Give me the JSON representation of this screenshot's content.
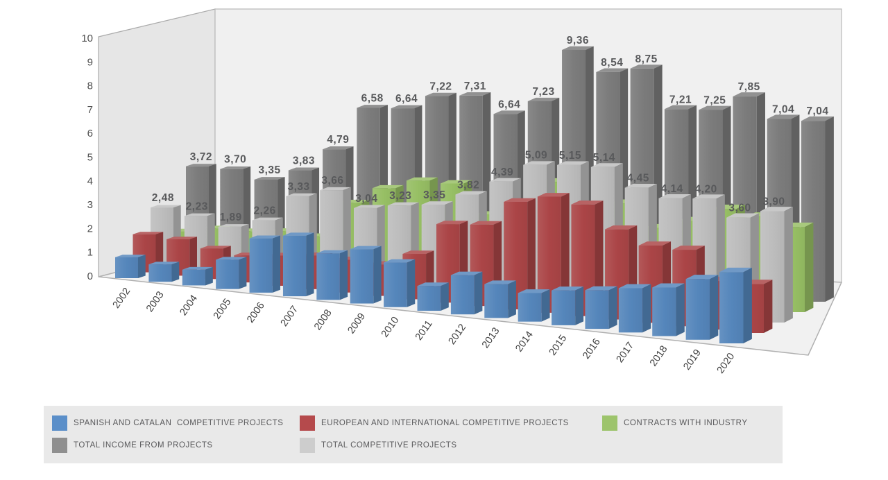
{
  "chart_data": {
    "type": "bar",
    "projection": "3d",
    "title": "",
    "xlabel": "",
    "ylabel": "",
    "ylim": [
      0,
      10
    ],
    "yticks": [
      0,
      1,
      2,
      3,
      4,
      5,
      6,
      7,
      8,
      9,
      10
    ],
    "grid": false,
    "legend_position": "bottom",
    "decimal_separator": ",",
    "categories": [
      "2002",
      "2003",
      "2004",
      "2005",
      "2006",
      "2007",
      "2008",
      "2009",
      "2010",
      "2011",
      "2012",
      "2013",
      "2014",
      "2015",
      "2016",
      "2017",
      "2018",
      "2019",
      "2020"
    ],
    "series": [
      {
        "key": "spanish_catalan",
        "name": "SPANISH AND CATALAN  COMPETITIVE PROJECTS",
        "color": "#5586bb",
        "depth": 0,
        "values_estimated": true,
        "values": [
          0.88,
          0.72,
          0.64,
          1.17,
          2.13,
          2.34,
          1.77,
          2.03,
          1.64,
          0.9,
          1.4,
          1.19,
          0.99,
          1.19,
          1.3,
          1.47,
          1.59,
          1.96,
          2.27
        ]
      },
      {
        "key": "european_international",
        "name": "EUROPEAN AND INTERNATIONAL COMPETITIVE PROJECTS",
        "color": "#ab4547",
        "depth": 1,
        "values_estimated": true,
        "values": [
          1.6,
          1.51,
          1.25,
          1.09,
          1.2,
          1.32,
          1.27,
          1.2,
          1.71,
          2.92,
          2.99,
          3.9,
          4.16,
          3.95,
          3.15,
          2.67,
          2.61,
          1.64,
          1.63
        ]
      },
      {
        "key": "contracts_industry",
        "name": "CONTRACTS WITH INDUSTRY",
        "color": "#97bf64",
        "depth": 3,
        "values_estimated": true,
        "values": [
          1.24,
          1.47,
          1.46,
          1.57,
          1.46,
          2.92,
          3.6,
          3.99,
          3.96,
          2.82,
          2.84,
          4.27,
          3.39,
          3.61,
          2.76,
          3.11,
          3.65,
          3.44,
          3.14
        ]
      },
      {
        "key": "total_income",
        "name": "TOTAL INCOME FROM PROJECTS",
        "color": "#7c7c7c",
        "depth": 4,
        "values": [
          3.72,
          3.7,
          3.35,
          3.83,
          4.79,
          6.58,
          6.64,
          7.22,
          7.31,
          6.64,
          7.23,
          9.36,
          8.54,
          8.75,
          7.21,
          7.25,
          7.85,
          7.04,
          7.04
        ],
        "labels": [
          "3,72",
          "3,70",
          "3,35",
          "3,83",
          "4,79",
          "6,58",
          "6,64",
          "7,22",
          "7,31",
          "6,64",
          "7,23",
          "9,36",
          "8,54",
          "8,75",
          "7,21",
          "7,25",
          "7,85",
          "7,04",
          "7,04"
        ]
      },
      {
        "key": "total_competitive",
        "name": "TOTAL COMPETITIVE PROJECTS",
        "color": "#bdbdbd",
        "depth": 2,
        "values": [
          2.48,
          2.23,
          1.89,
          2.26,
          3.33,
          3.66,
          3.04,
          3.23,
          3.35,
          3.82,
          4.39,
          5.09,
          5.15,
          5.14,
          4.45,
          4.14,
          4.2,
          3.6,
          3.9
        ],
        "labels": [
          "2,48",
          "2,23",
          "1,89",
          "2,26",
          "3,33",
          "3,66",
          "3,04",
          "3,23",
          "3,35",
          "3,82",
          "4,39",
          "5,09",
          "5,15",
          "5,14",
          "4,45",
          "4,14",
          "4,20",
          "3,60",
          "3,90"
        ]
      }
    ]
  },
  "axis": {
    "tick_labels": [
      "0",
      "1",
      "2",
      "3",
      "4",
      "5",
      "6",
      "7",
      "8",
      "9",
      "10"
    ]
  },
  "legend": {
    "items": [
      {
        "label": "SPANISH AND CATALAN  COMPETITIVE PROJECTS",
        "color": "#5b8fc9"
      },
      {
        "label": "EUROPEAN AND INTERNATIONAL COMPETITIVE PROJECTS",
        "color": "#b54a4c"
      },
      {
        "label": "CONTRACTS WITH INDUSTRY",
        "color": "#9dc46c"
      },
      {
        "label": "TOTAL INCOME FROM PROJECTS",
        "color": "#8f8f8f"
      },
      {
        "label": "TOTAL COMPETITIVE PROJECTS",
        "color": "#cdcdcd"
      }
    ]
  },
  "colors": {
    "page_background": "#ffffff",
    "left_wall": "#e6e6e6",
    "back_wall": "#f0f0f0",
    "floor": "#f1f1f1",
    "wall_border": "#aaaaaa",
    "legend_background": "#e9e9e9",
    "value_label_text": "#58595b",
    "tick_text": "#4d4d4d",
    "year_text": "#3f3f3f"
  }
}
